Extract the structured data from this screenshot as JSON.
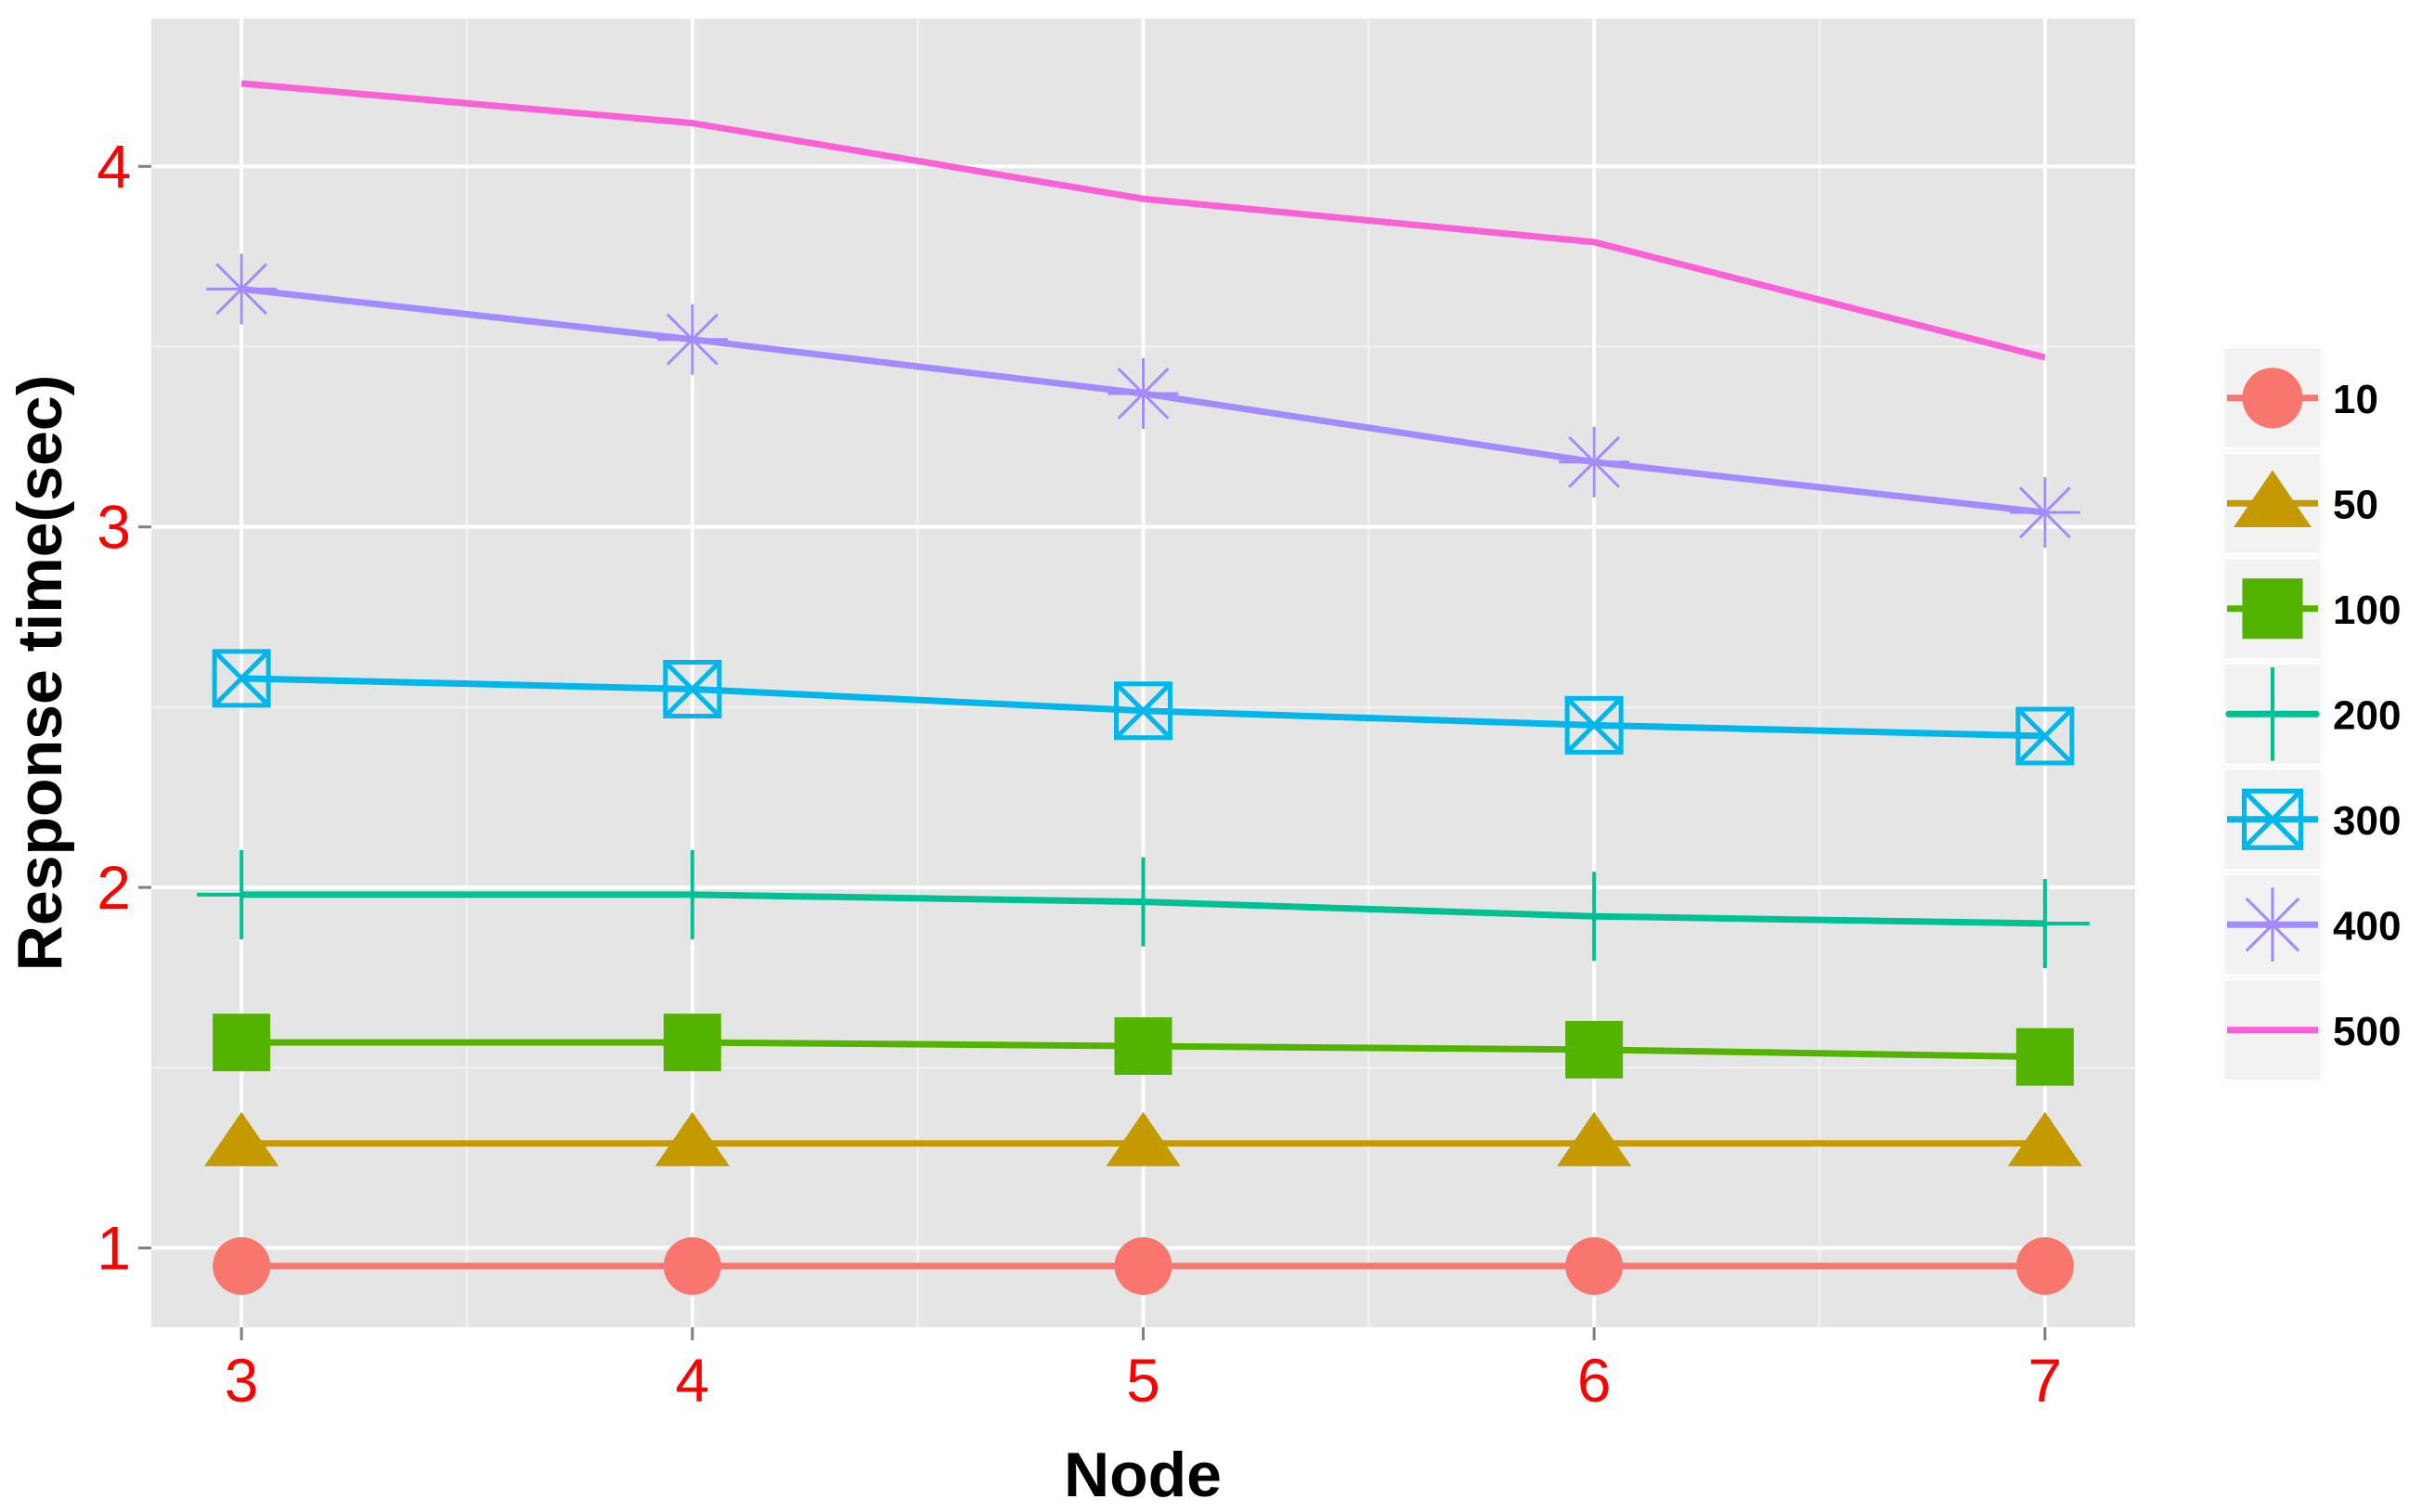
{
  "chart_data": {
    "type": "line",
    "title": "",
    "xlabel": "Node",
    "ylabel": "Response time(sec)",
    "x": [
      3,
      4,
      5,
      6,
      7
    ],
    "x_ticks": [
      "3",
      "4",
      "5",
      "6",
      "7"
    ],
    "xlim": [
      2.8,
      7.2
    ],
    "y_ticks": [
      "1",
      "2",
      "3",
      "4"
    ],
    "ylim": [
      0.78,
      4.41
    ],
    "grid": true,
    "legend_position": "right",
    "panel_background": "#e5e5e5",
    "tick_label_color": "#ff0000",
    "series": [
      {
        "name": "10",
        "color": "#f8766d",
        "marker": "circle",
        "values": [
          0.95,
          0.95,
          0.95,
          0.95,
          0.95
        ]
      },
      {
        "name": "50",
        "color": "#c49a00",
        "marker": "triangle",
        "values": [
          1.29,
          1.29,
          1.29,
          1.29,
          1.29
        ]
      },
      {
        "name": "100",
        "color": "#53b400",
        "marker": "square",
        "values": [
          1.57,
          1.57,
          1.56,
          1.55,
          1.53
        ]
      },
      {
        "name": "200",
        "color": "#00c094",
        "marker": "plus",
        "values": [
          1.98,
          1.98,
          1.96,
          1.92,
          1.9
        ]
      },
      {
        "name": "300",
        "color": "#00b6eb",
        "marker": "square-crossed",
        "values": [
          2.58,
          2.55,
          2.49,
          2.45,
          2.42
        ]
      },
      {
        "name": "400",
        "color": "#a58aff",
        "marker": "asterisk",
        "values": [
          3.66,
          3.52,
          3.37,
          3.18,
          3.04
        ]
      },
      {
        "name": "500",
        "color": "#fb61d7",
        "marker": "none",
        "values": [
          4.23,
          4.12,
          3.91,
          3.79,
          3.47
        ]
      }
    ]
  }
}
